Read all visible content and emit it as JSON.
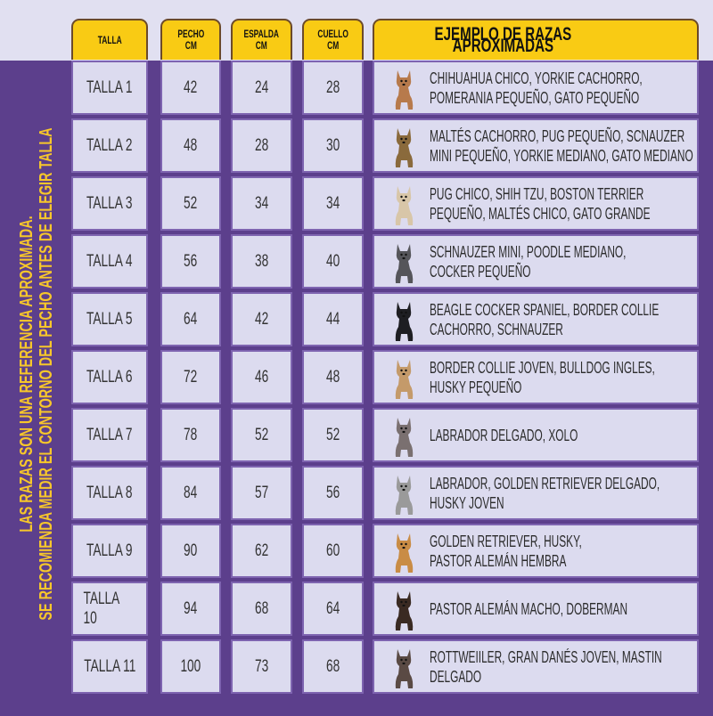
{
  "headers": {
    "talla": "TALLA",
    "pecho": "PECHO\nCM",
    "espalda": "ESPALDA\nCM",
    "cuello": "CUELLO\nCM",
    "razas": "EJEMPLO DE RAZAS APROXIMADAS"
  },
  "side_note": {
    "line1": "LAS RAZAS SON UNA REFERENCIA APROXIMADA.",
    "line2": "SE RECOMIENDA MEDIR EL CONTORNO DEL PECHO ANTES DE ELEGIR TALLA"
  },
  "colors": {
    "purple": "#5c3f8c",
    "yellow": "#f9cb14",
    "cell": "#dcdbef",
    "top_band": "#e1e0f1"
  },
  "rows": [
    {
      "talla": "TALLA 1",
      "pecho": "42",
      "espalda": "24",
      "cuello": "28",
      "razas": [
        "CHIHUAHUA CHICO, YORKIE CACHORRO,",
        "POMERANIA PEQUEÑO, GATO PEQUEÑO"
      ],
      "icon": "chihuahua-icon",
      "dog_color": "#b77a4c"
    },
    {
      "talla": "TALLA 2",
      "pecho": "48",
      "espalda": "28",
      "cuello": "30",
      "razas": [
        "MALTÉS CACHORRO, PUG PEQUEÑO, SCNAUZER",
        "MINI PEQUEÑO, YORKIE MEDIANO, GATO MEDIANO"
      ],
      "icon": "yorkie-icon",
      "dog_color": "#8a6a3c"
    },
    {
      "talla": "TALLA 3",
      "pecho": "52",
      "espalda": "34",
      "cuello": "34",
      "razas": [
        "PUG CHICO, SHIH TZU, BOSTON TERRIER",
        "PEQUEÑO, MALTÉS CHICO, GATO GRANDE"
      ],
      "icon": "shih-tzu-icon",
      "dog_color": "#d8c6a8"
    },
    {
      "talla": "TALLA 4",
      "pecho": "56",
      "espalda": "38",
      "cuello": "40",
      "razas": [
        "SCHNAUZER MINI, POODLE MEDIANO,",
        "COCKER PEQUEÑO"
      ],
      "icon": "schnauzer-icon",
      "dog_color": "#55555a"
    },
    {
      "talla": "TALLA 5",
      "pecho": "64",
      "espalda": "42",
      "cuello": "44",
      "razas": [
        "BEAGLE COCKER SPANIEL, BORDER COLLIE",
        "CACHORRO, SCHNAUZER"
      ],
      "icon": "border-collie-icon",
      "dog_color": "#1e1e22"
    },
    {
      "talla": "TALLA 6",
      "pecho": "72",
      "espalda": "46",
      "cuello": "48",
      "razas": [
        "BORDER COLLIE JOVEN, BULLDOG INGLES,",
        "HUSKY PEQUEÑO"
      ],
      "icon": "bulldog-icon",
      "dog_color": "#c49a6a"
    },
    {
      "talla": "TALLA 7",
      "pecho": "78",
      "espalda": "52",
      "cuello": "52",
      "razas": [
        "LABRADOR DELGADO, XOLO"
      ],
      "icon": "xolo-icon",
      "dog_color": "#7a7070"
    },
    {
      "talla": "TALLA 8",
      "pecho": "84",
      "espalda": "57",
      "cuello": "56",
      "razas": [
        "LABRADOR, GOLDEN RETRIEVER DELGADO,",
        "HUSKY JOVEN"
      ],
      "icon": "dalmatian-icon",
      "dog_color": "#9a9a9a"
    },
    {
      "talla": "TALLA 9",
      "pecho": "90",
      "espalda": "62",
      "cuello": "60",
      "razas": [
        "GOLDEN RETRIEVER, HUSKY,",
        "PASTOR ALEMÁN HEMBRA"
      ],
      "icon": "golden-retriever-icon",
      "dog_color": "#c98c45"
    },
    {
      "talla": "TALLA 10",
      "pecho": "94",
      "espalda": "68",
      "cuello": "64",
      "razas": [
        "PASTOR ALEMÁN MACHO, DOBERMAN"
      ],
      "icon": "doberman-icon",
      "dog_color": "#3a2a22"
    },
    {
      "talla": "TALLA 11",
      "pecho": "100",
      "espalda": "73",
      "cuello": "68",
      "razas": [
        "ROTTWEIILER, GRAN DANÉS JOVEN, MASTIN",
        "DELGADO"
      ],
      "icon": "pitbull-icon",
      "dog_color": "#5a4a44"
    }
  ]
}
